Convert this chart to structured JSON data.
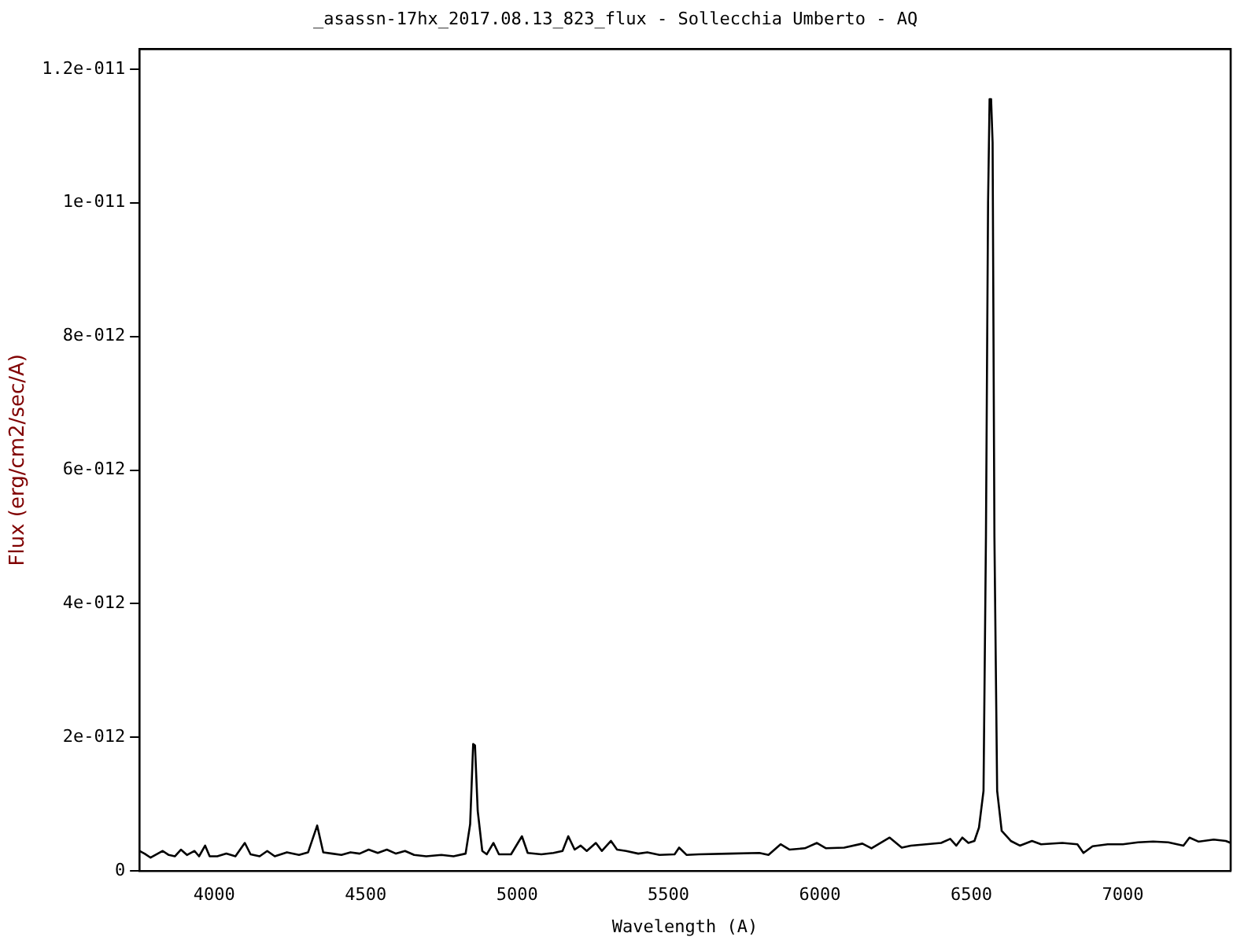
{
  "chart_data": {
    "type": "line",
    "title": "_asassn-17hx_2017.08.13_823_flux - Sollecchia Umberto - AQ",
    "xlabel": "Wavelength (A)",
    "ylabel": "Flux (erg/cm2/sec/A)",
    "x": [
      3753,
      3770,
      3790,
      3810,
      3830,
      3850,
      3870,
      3890,
      3910,
      3935,
      3950,
      3970,
      3985,
      4010,
      4040,
      4070,
      4101,
      4120,
      4150,
      4175,
      4200,
      4240,
      4280,
      4310,
      4340,
      4360,
      4390,
      4420,
      4450,
      4480,
      4510,
      4540,
      4570,
      4600,
      4630,
      4660,
      4700,
      4750,
      4790,
      4830,
      4845,
      4855,
      4861,
      4870,
      4885,
      4900,
      4922,
      4940,
      4980,
      5016,
      5035,
      5080,
      5120,
      5150,
      5169,
      5190,
      5210,
      5230,
      5260,
      5280,
      5310,
      5330,
      5360,
      5400,
      5430,
      5470,
      5520,
      5535,
      5560,
      5600,
      5700,
      5800,
      5830,
      5870,
      5900,
      5950,
      5990,
      6020,
      6080,
      6140,
      6170,
      6230,
      6270,
      6300,
      6400,
      6430,
      6450,
      6470,
      6490,
      6510,
      6525,
      6540,
      6548,
      6555,
      6560,
      6565,
      6570,
      6576,
      6585,
      6600,
      6630,
      6660,
      6700,
      6730,
      6800,
      6850,
      6870,
      6900,
      6950,
      7000,
      7050,
      7100,
      7150,
      7200,
      7220,
      7250,
      7300,
      7340,
      7356
    ],
    "series": [
      {
        "color": "#000000",
        "values": [
          3e-13,
          2.6e-13,
          2e-13,
          2.5e-13,
          3e-13,
          2.4e-13,
          2.2e-13,
          3.2e-13,
          2.4e-13,
          3e-13,
          2.2e-13,
          3.8e-13,
          2.2e-13,
          2.2e-13,
          2.6e-13,
          2.2e-13,
          4.2e-13,
          2.5e-13,
          2.2e-13,
          3e-13,
          2.2e-13,
          2.8e-13,
          2.4e-13,
          2.8e-13,
          6.8e-13,
          2.8e-13,
          2.6e-13,
          2.4e-13,
          2.8e-13,
          2.6e-13,
          3.2e-13,
          2.7e-13,
          3.2e-13,
          2.6e-13,
          3e-13,
          2.4e-13,
          2.2e-13,
          2.4e-13,
          2.2e-13,
          2.6e-13,
          7e-13,
          1.9e-12,
          1.88e-12,
          9e-13,
          3e-13,
          2.5e-13,
          4.2e-13,
          2.5e-13,
          2.5e-13,
          5.2e-13,
          2.7e-13,
          2.5e-13,
          2.7e-13,
          3e-13,
          5.2e-13,
          3.2e-13,
          3.8e-13,
          3e-13,
          4.2e-13,
          3e-13,
          4.5e-13,
          3.2e-13,
          3e-13,
          2.6e-13,
          2.8e-13,
          2.4e-13,
          2.5e-13,
          3.5e-13,
          2.4e-13,
          2.5e-13,
          2.6e-13,
          2.7e-13,
          2.4e-13,
          4e-13,
          3.2e-13,
          3.4e-13,
          4.2e-13,
          3.4e-13,
          3.5e-13,
          4.1e-13,
          3.4e-13,
          5e-13,
          3.5e-13,
          3.8e-13,
          4.2e-13,
          4.8e-13,
          3.8e-13,
          5e-13,
          4.2e-13,
          4.5e-13,
          6.5e-13,
          1.2e-12,
          5e-12,
          1e-11,
          1.155e-11,
          1.155e-11,
          1.09e-11,
          5e-12,
          1.2e-12,
          6e-13,
          4.5e-13,
          3.8e-13,
          4.5e-13,
          4e-13,
          4.2e-13,
          4e-13,
          2.7e-13,
          3.7e-13,
          4e-13,
          4e-13,
          4.3e-13,
          4.4e-13,
          4.3e-13,
          3.8e-13,
          5e-13,
          4.4e-13,
          4.7e-13,
          4.5e-13,
          4.2e-13
        ]
      }
    ],
    "xlim": [
      3753,
      7356
    ],
    "xticks": [
      4000,
      4500,
      5000,
      5500,
      6000,
      6500,
      7000
    ],
    "ylim": [
      0,
      1.23e-11
    ],
    "yticks": [
      {
        "value": 0,
        "label": "0"
      },
      {
        "value": 2e-12,
        "label": "2e-012"
      },
      {
        "value": 4e-12,
        "label": "4e-012"
      },
      {
        "value": 6e-12,
        "label": "6e-012"
      },
      {
        "value": 8e-12,
        "label": "8e-012"
      },
      {
        "value": 1e-11,
        "label": "1e-011"
      },
      {
        "value": 1.2e-11,
        "label": "1.2e-011"
      }
    ],
    "grid": false,
    "legend": false,
    "marker": "none",
    "line_style": "solid"
  }
}
